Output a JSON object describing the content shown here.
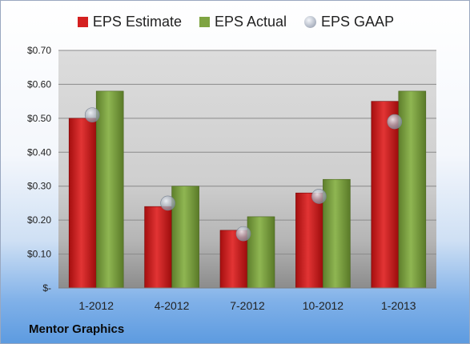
{
  "chart_data": {
    "type": "bar",
    "categories": [
      "1-2012",
      "4-2012",
      "7-2012",
      "10-2012",
      "1-2013"
    ],
    "series": [
      {
        "name": "EPS Estimate",
        "type": "bar",
        "color": "#d42020",
        "values": [
          0.5,
          0.24,
          0.17,
          0.28,
          0.55
        ]
      },
      {
        "name": "EPS Actual",
        "type": "bar",
        "color": "#7fa442",
        "values": [
          0.58,
          0.3,
          0.21,
          0.32,
          0.58
        ]
      },
      {
        "name": "EPS GAAP",
        "type": "scatter",
        "color": "#aab1bd",
        "values": [
          0.51,
          0.25,
          0.16,
          0.27,
          0.49
        ]
      }
    ],
    "ylim": [
      0,
      0.7
    ],
    "yticks": [
      0,
      0.1,
      0.2,
      0.3,
      0.4,
      0.5,
      0.6,
      0.7
    ],
    "ytick_labels": [
      "$-",
      "$0.10",
      "$0.20",
      "$0.30",
      "$0.40",
      "$0.50",
      "$0.60",
      "$0.70"
    ],
    "grid": true,
    "legend_position": "top"
  },
  "footer": {
    "company": "Mentor Graphics"
  }
}
